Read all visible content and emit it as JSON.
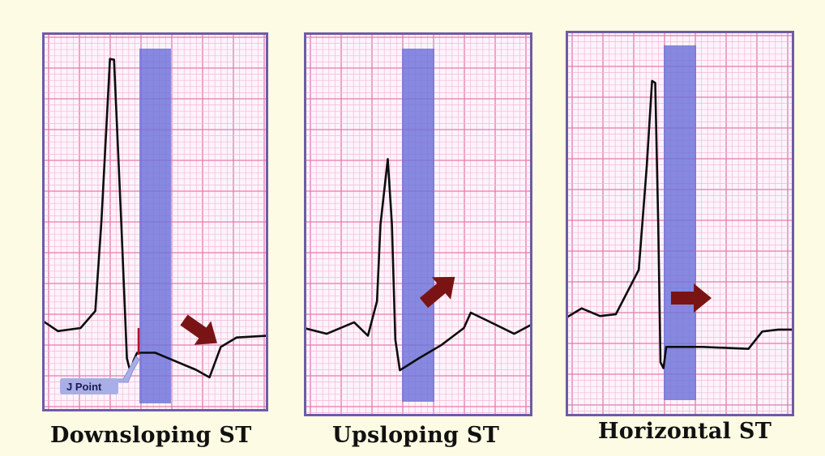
{
  "colors": {
    "background": "#fdfbe3",
    "paper": "#fdf4fb",
    "grid_minor": "#f4b8d6",
    "grid_major": "#e57aae",
    "frame": "#6e5ba8",
    "highlight_band": "#6b72d8",
    "ecg_trace": "#0c0c0c",
    "arrow": "#7a1414",
    "j_point_marker": "#b0102a",
    "j_point_label_bg": "#a9aee6"
  },
  "panels": [
    {
      "caption": "Downsloping ST",
      "arrow_direction": "down-right",
      "trace_points": [
        [
          0,
          0.76
        ],
        [
          0.07,
          0.788
        ],
        [
          0.17,
          0.78
        ],
        [
          0.235,
          0.735
        ],
        [
          0.262,
          0.5
        ],
        [
          0.3,
          0.07
        ],
        [
          0.318,
          0.072
        ],
        [
          0.35,
          0.5
        ],
        [
          0.375,
          0.86
        ],
        [
          0.39,
          0.895
        ],
        [
          0.405,
          0.865
        ],
        [
          0.42,
          0.845
        ],
        [
          0.5,
          0.845
        ],
        [
          0.6,
          0.87
        ],
        [
          0.68,
          0.89
        ],
        [
          0.74,
          0.91
        ],
        [
          0.79,
          0.83
        ],
        [
          0.86,
          0.805
        ],
        [
          1,
          0.8
        ]
      ]
    },
    {
      "caption": "Upsloping ST",
      "arrow_direction": "up-right",
      "trace_points": [
        [
          0,
          0.77
        ],
        [
          0.1,
          0.785
        ],
        [
          0.22,
          0.755
        ],
        [
          0.28,
          0.79
        ],
        [
          0.32,
          0.7
        ],
        [
          0.335,
          0.5
        ],
        [
          0.367,
          0.33
        ],
        [
          0.385,
          0.5
        ],
        [
          0.4,
          0.8
        ],
        [
          0.42,
          0.88
        ],
        [
          0.5,
          0.85
        ],
        [
          0.6,
          0.815
        ],
        [
          0.7,
          0.77
        ],
        [
          0.73,
          0.73
        ],
        [
          0.8,
          0.75
        ],
        [
          0.92,
          0.785
        ],
        [
          1,
          0.76
        ]
      ]
    },
    {
      "caption": "Horizontal ST",
      "arrow_direction": "right",
      "trace_points": [
        [
          0,
          0.745
        ],
        [
          0.07,
          0.72
        ],
        [
          0.15,
          0.74
        ],
        [
          0.22,
          0.735
        ],
        [
          0.32,
          0.62
        ],
        [
          0.355,
          0.35
        ],
        [
          0.378,
          0.13
        ],
        [
          0.392,
          0.135
        ],
        [
          0.405,
          0.5
        ],
        [
          0.415,
          0.86
        ],
        [
          0.428,
          0.875
        ],
        [
          0.44,
          0.82
        ],
        [
          0.6,
          0.82
        ],
        [
          0.8,
          0.825
        ],
        [
          0.86,
          0.78
        ],
        [
          0.93,
          0.775
        ],
        [
          1,
          0.775
        ]
      ]
    }
  ],
  "j_point_label": "J Point"
}
